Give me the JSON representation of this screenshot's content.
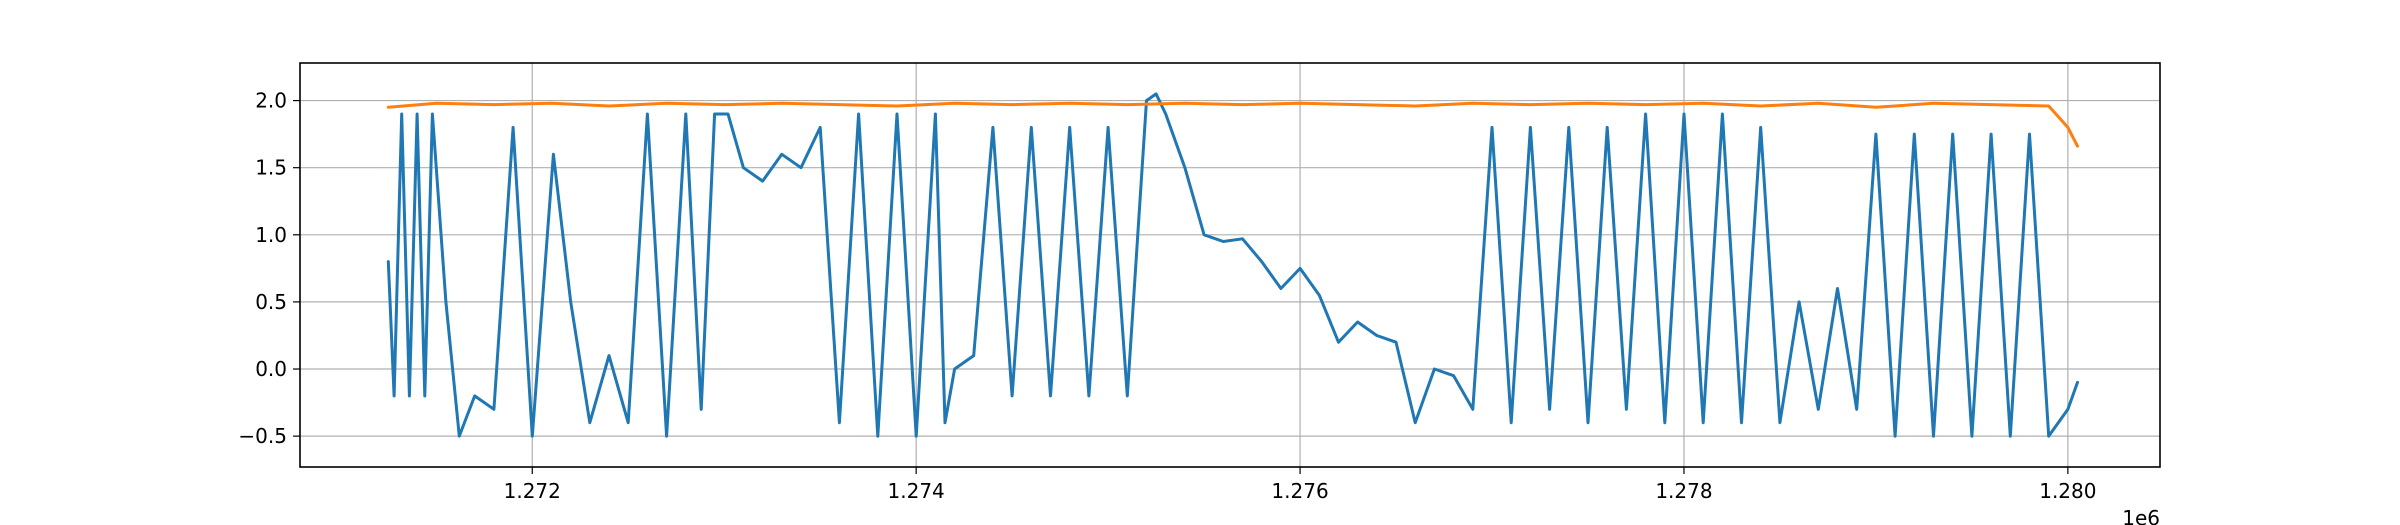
{
  "chart_data": {
    "type": "line",
    "title": "",
    "xlabel": "",
    "ylabel": "",
    "x_offset_label": "1e6",
    "xlim": [
      1.27079,
      1.28048
    ],
    "ylim": [
      -0.73,
      2.28
    ],
    "x_ticks": [
      1.272,
      1.274,
      1.276,
      1.278,
      1.28
    ],
    "x_tick_labels": [
      "1.272",
      "1.274",
      "1.276",
      "1.278",
      "1.280"
    ],
    "y_ticks": [
      -0.5,
      0.0,
      0.5,
      1.0,
      1.5,
      2.0
    ],
    "y_tick_labels": [
      "−0.5",
      "0.0",
      "0.5",
      "1.0",
      "1.5",
      "2.0"
    ],
    "grid": true,
    "legend": "none",
    "series": [
      {
        "color": "#1f77b4",
        "x": [
          1.27125,
          1.27128,
          1.27132,
          1.27136,
          1.2714,
          1.27144,
          1.27148,
          1.27155,
          1.27162,
          1.2717,
          1.2718,
          1.2719,
          1.272,
          1.27211,
          1.2722,
          1.2723,
          1.2724,
          1.2725,
          1.2726,
          1.2727,
          1.2728,
          1.27288,
          1.27295,
          1.27302,
          1.2731,
          1.2732,
          1.2733,
          1.2734,
          1.2735,
          1.2736,
          1.2737,
          1.2738,
          1.2739,
          1.274,
          1.2741,
          1.27415,
          1.2742,
          1.2743,
          1.2744,
          1.2745,
          1.2746,
          1.2747,
          1.2748,
          1.2749,
          1.275,
          1.2751,
          1.2752,
          1.27525,
          1.2753,
          1.2754,
          1.2755,
          1.2756,
          1.2757,
          1.2758,
          1.2759,
          1.276,
          1.2761,
          1.2762,
          1.2763,
          1.2764,
          1.2765,
          1.2766,
          1.2767,
          1.2768,
          1.2769,
          1.277,
          1.2771,
          1.2772,
          1.2773,
          1.2774,
          1.2775,
          1.2776,
          1.2777,
          1.2778,
          1.2779,
          1.278,
          1.2781,
          1.2782,
          1.2783,
          1.2784,
          1.2785,
          1.2786,
          1.2787,
          1.2788,
          1.2789,
          1.279,
          1.2791,
          1.2792,
          1.2793,
          1.2794,
          1.2795,
          1.2796,
          1.2797,
          1.2798,
          1.2799,
          1.28,
          1.28005
        ],
        "y": [
          0.8,
          -0.2,
          1.9,
          -0.2,
          1.9,
          -0.2,
          1.9,
          0.5,
          -0.5,
          -0.2,
          -0.3,
          1.8,
          -0.5,
          1.6,
          0.5,
          -0.4,
          0.1,
          -0.4,
          1.9,
          -0.5,
          1.9,
          -0.3,
          1.9,
          1.9,
          1.5,
          1.4,
          1.6,
          1.5,
          1.8,
          -0.4,
          1.9,
          -0.5,
          1.9,
          -0.5,
          1.9,
          -0.4,
          0.0,
          0.1,
          1.8,
          -0.2,
          1.8,
          -0.2,
          1.8,
          -0.2,
          1.8,
          -0.2,
          2.0,
          2.05,
          1.9,
          1.5,
          1.0,
          0.95,
          0.97,
          0.8,
          0.6,
          0.75,
          0.55,
          0.2,
          0.35,
          0.25,
          0.2,
          -0.4,
          0.0,
          -0.05,
          -0.3,
          1.8,
          -0.4,
          1.8,
          -0.3,
          1.8,
          -0.4,
          1.8,
          -0.3,
          1.9,
          -0.4,
          1.9,
          -0.4,
          1.9,
          -0.4,
          1.8,
          -0.4,
          0.5,
          -0.3,
          0.6,
          -0.3,
          1.75,
          -0.5,
          1.75,
          -0.5,
          1.75,
          -0.5,
          1.75,
          -0.5,
          1.75,
          -0.5,
          -0.3,
          -0.1
        ]
      },
      {
        "color": "#ff7f0e",
        "x": [
          1.27125,
          1.2715,
          1.2718,
          1.2721,
          1.2724,
          1.2727,
          1.273,
          1.2733,
          1.2736,
          1.2739,
          1.2742,
          1.2745,
          1.2748,
          1.2751,
          1.2754,
          1.2757,
          1.276,
          1.2763,
          1.2766,
          1.2769,
          1.2772,
          1.2775,
          1.2778,
          1.2781,
          1.2784,
          1.2787,
          1.279,
          1.2793,
          1.2796,
          1.2799,
          1.28,
          1.28005
        ],
        "y": [
          1.95,
          1.98,
          1.97,
          1.98,
          1.96,
          1.98,
          1.97,
          1.98,
          1.97,
          1.96,
          1.98,
          1.97,
          1.98,
          1.97,
          1.98,
          1.97,
          1.98,
          1.97,
          1.96,
          1.98,
          1.97,
          1.98,
          1.97,
          1.98,
          1.96,
          1.98,
          1.95,
          1.98,
          1.97,
          1.96,
          1.8,
          1.66
        ]
      }
    ]
  }
}
